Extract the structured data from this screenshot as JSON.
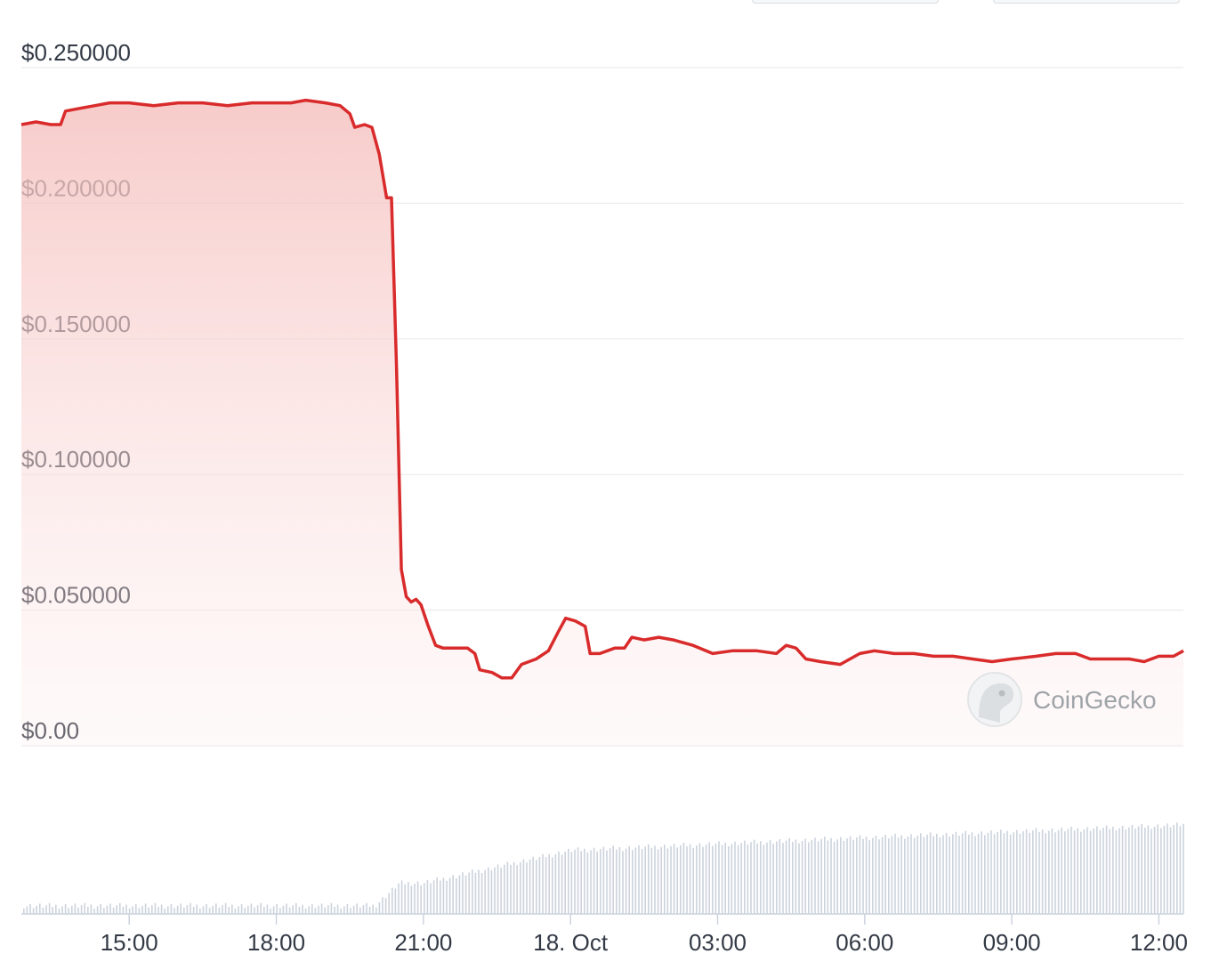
{
  "watermark": {
    "text": "CoinGecko",
    "icon": "gecko-logo-icon"
  },
  "colors": {
    "line": "#d92b2b",
    "fill_top": "#f5c2c0",
    "volume": "#ccd3dd",
    "grid": "#ececec"
  },
  "chart_data": {
    "type": "line",
    "y_tick_labels": [
      "$0.250000",
      "$0.200000",
      "$0.150000",
      "$0.100000",
      "$0.050000",
      "$0.00"
    ],
    "y_ticks": [
      0.25,
      0.2,
      0.15,
      0.1,
      0.05,
      0
    ],
    "ylim": [
      0,
      0.25
    ],
    "x_tick_labels": [
      "15:00",
      "18:00",
      "21:00",
      "18. Oct",
      "03:00",
      "06:00",
      "09:00",
      "12:00"
    ],
    "x_ticks_hours": [
      15,
      18,
      21,
      24,
      27,
      30,
      33,
      36
    ],
    "x_range_hours": [
      12.8,
      36.5
    ],
    "series": [
      {
        "values": [
          [
            12.8,
            0.229
          ],
          [
            13.1,
            0.23
          ],
          [
            13.4,
            0.229
          ],
          [
            13.6,
            0.229
          ],
          [
            13.7,
            0.234
          ],
          [
            14.0,
            0.235
          ],
          [
            14.3,
            0.236
          ],
          [
            14.6,
            0.237
          ],
          [
            15.0,
            0.237
          ],
          [
            15.5,
            0.236
          ],
          [
            16.0,
            0.237
          ],
          [
            16.5,
            0.237
          ],
          [
            17.0,
            0.236
          ],
          [
            17.5,
            0.237
          ],
          [
            18.0,
            0.237
          ],
          [
            18.3,
            0.237
          ],
          [
            18.6,
            0.238
          ],
          [
            19.0,
            0.237
          ],
          [
            19.3,
            0.236
          ],
          [
            19.5,
            0.233
          ],
          [
            19.6,
            0.228
          ],
          [
            19.8,
            0.229
          ],
          [
            19.95,
            0.228
          ],
          [
            20.1,
            0.218
          ],
          [
            20.25,
            0.202
          ],
          [
            20.35,
            0.202
          ],
          [
            20.45,
            0.14
          ],
          [
            20.55,
            0.065
          ],
          [
            20.65,
            0.055
          ],
          [
            20.75,
            0.053
          ],
          [
            20.85,
            0.054
          ],
          [
            20.95,
            0.052
          ],
          [
            21.1,
            0.044
          ],
          [
            21.25,
            0.037
          ],
          [
            21.4,
            0.036
          ],
          [
            21.6,
            0.036
          ],
          [
            21.9,
            0.036
          ],
          [
            22.05,
            0.034
          ],
          [
            22.15,
            0.028
          ],
          [
            22.4,
            0.027
          ],
          [
            22.6,
            0.025
          ],
          [
            22.8,
            0.025
          ],
          [
            23.0,
            0.03
          ],
          [
            23.3,
            0.032
          ],
          [
            23.55,
            0.035
          ],
          [
            23.75,
            0.042
          ],
          [
            23.9,
            0.047
          ],
          [
            24.1,
            0.046
          ],
          [
            24.3,
            0.044
          ],
          [
            24.4,
            0.034
          ],
          [
            24.6,
            0.034
          ],
          [
            24.9,
            0.036
          ],
          [
            25.1,
            0.036
          ],
          [
            25.25,
            0.04
          ],
          [
            25.5,
            0.039
          ],
          [
            25.8,
            0.04
          ],
          [
            26.1,
            0.039
          ],
          [
            26.5,
            0.037
          ],
          [
            26.9,
            0.034
          ],
          [
            27.3,
            0.035
          ],
          [
            27.8,
            0.035
          ],
          [
            28.2,
            0.034
          ],
          [
            28.4,
            0.037
          ],
          [
            28.6,
            0.036
          ],
          [
            28.8,
            0.032
          ],
          [
            29.1,
            0.031
          ],
          [
            29.5,
            0.03
          ],
          [
            29.9,
            0.034
          ],
          [
            30.2,
            0.035
          ],
          [
            30.6,
            0.034
          ],
          [
            31.0,
            0.034
          ],
          [
            31.4,
            0.033
          ],
          [
            31.8,
            0.033
          ],
          [
            32.2,
            0.032
          ],
          [
            32.6,
            0.031
          ],
          [
            33.0,
            0.032
          ],
          [
            33.5,
            0.033
          ],
          [
            33.9,
            0.034
          ],
          [
            34.3,
            0.034
          ],
          [
            34.6,
            0.032
          ],
          [
            35.0,
            0.032
          ],
          [
            35.4,
            0.032
          ],
          [
            35.7,
            0.031
          ],
          [
            36.0,
            0.033
          ],
          [
            36.3,
            0.033
          ],
          [
            36.5,
            0.035
          ]
        ]
      }
    ]
  }
}
